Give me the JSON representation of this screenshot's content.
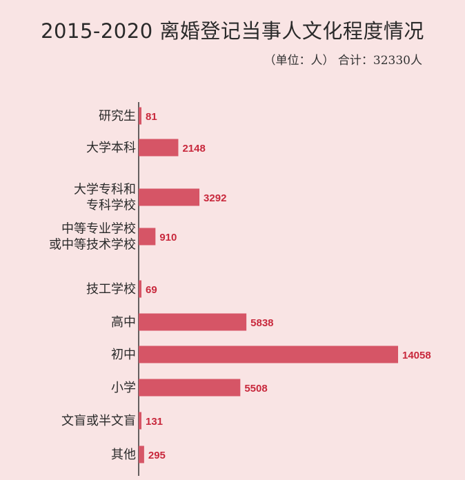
{
  "title": "2015-2020  离婚登记当事人文化程度情况",
  "subtitle": "（单位：人） 合计：32330人",
  "colors": {
    "background": "#f9e4e4",
    "bar": "#d65566",
    "value_label": "#c8283c",
    "axis": "#333333"
  },
  "chart_data": {
    "type": "bar",
    "orientation": "horizontal",
    "title": "2015-2020  离婚登记当事人文化程度情况",
    "unit": "人",
    "total": 32330,
    "categories": [
      [
        "研究生"
      ],
      [
        "大学本科"
      ],
      [
        "大学专科和",
        "专科学校"
      ],
      [
        "中等专业学校",
        "或中等技术学校"
      ],
      [
        "技工学校"
      ],
      [
        "高中"
      ],
      [
        "初中"
      ],
      [
        "小学"
      ],
      [
        "文盲或半文盲"
      ],
      [
        "其他"
      ]
    ],
    "values": [
      81,
      2148,
      3292,
      910,
      69,
      5838,
      14058,
      5508,
      131,
      295
    ],
    "xlim": [
      0,
      14058
    ],
    "grid": false,
    "legend": "none"
  }
}
